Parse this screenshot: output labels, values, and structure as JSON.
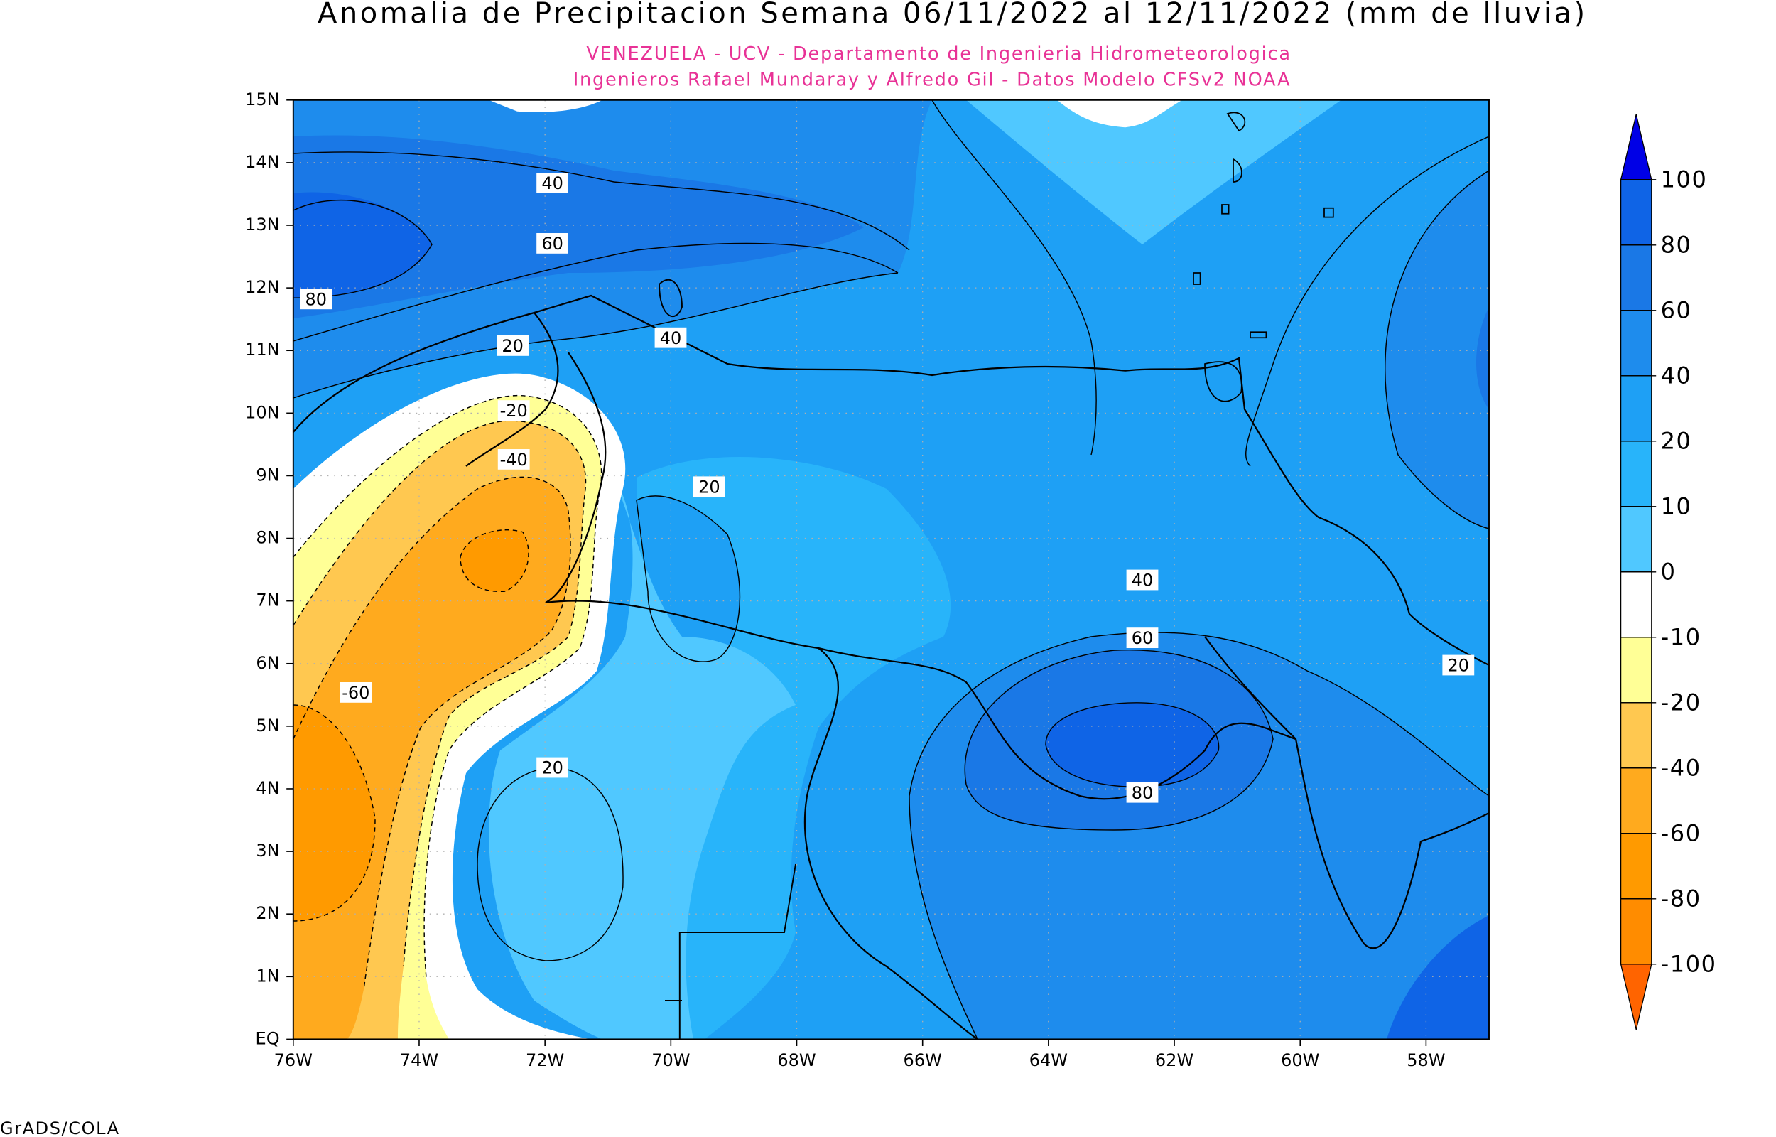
{
  "title": "Anomalia de Precipitacion Semana 06/11/2022 al 12/11/2022 (mm de lluvia)",
  "subtitle": [
    "VENEZUELA - UCV - Departamento de Ingenieria Hidrometeorologica",
    "Ingenieros Rafael Mundaray y Alfredo Gil - Datos Modelo CFSv2 NOAA"
  ],
  "map": {
    "lon_ticks": [
      {
        "value": -76,
        "label": "76W"
      },
      {
        "value": -74,
        "label": "74W"
      },
      {
        "value": -72,
        "label": "72W"
      },
      {
        "value": -70,
        "label": "70W"
      },
      {
        "value": -68,
        "label": "68W"
      },
      {
        "value": -66,
        "label": "66W"
      },
      {
        "value": -64,
        "label": "64W"
      },
      {
        "value": -62,
        "label": "62W"
      },
      {
        "value": -60,
        "label": "60W"
      },
      {
        "value": -58,
        "label": "58W"
      }
    ],
    "lat_ticks": [
      {
        "value": 0,
        "label": "EQ"
      },
      {
        "value": 1,
        "label": "1N"
      },
      {
        "value": 2,
        "label": "2N"
      },
      {
        "value": 3,
        "label": "3N"
      },
      {
        "value": 4,
        "label": "4N"
      },
      {
        "value": 5,
        "label": "5N"
      },
      {
        "value": 6,
        "label": "6N"
      },
      {
        "value": 7,
        "label": "7N"
      },
      {
        "value": 8,
        "label": "8N"
      },
      {
        "value": 9,
        "label": "9N"
      },
      {
        "value": 10,
        "label": "10N"
      },
      {
        "value": 11,
        "label": "11N"
      },
      {
        "value": 12,
        "label": "12N"
      },
      {
        "value": 13,
        "label": "13N"
      },
      {
        "value": 14,
        "label": "14N"
      },
      {
        "value": 15,
        "label": "15N"
      }
    ],
    "lonlim": [
      -76,
      -57
    ],
    "latlim": [
      0,
      15
    ],
    "contour_labels": [
      40,
      60,
      80,
      40,
      20,
      -20,
      -40,
      20,
      40,
      60,
      80,
      20,
      20,
      -60
    ]
  },
  "colorbar": {
    "levels": [
      100,
      80,
      60,
      40,
      20,
      10,
      0,
      -10,
      -20,
      -40,
      -60,
      -80,
      -100
    ],
    "colors": [
      "#0000e6",
      "#0f64e6",
      "#1a78e6",
      "#1e8ced",
      "#1ea0f5",
      "#28b4fa",
      "#50c8ff",
      "#ffffff",
      "#ffff96",
      "#ffc850",
      "#ffaa1e",
      "#ff9a00",
      "#ff8c00",
      "#ff6400"
    ]
  },
  "footer": "GrADS/COLA"
}
